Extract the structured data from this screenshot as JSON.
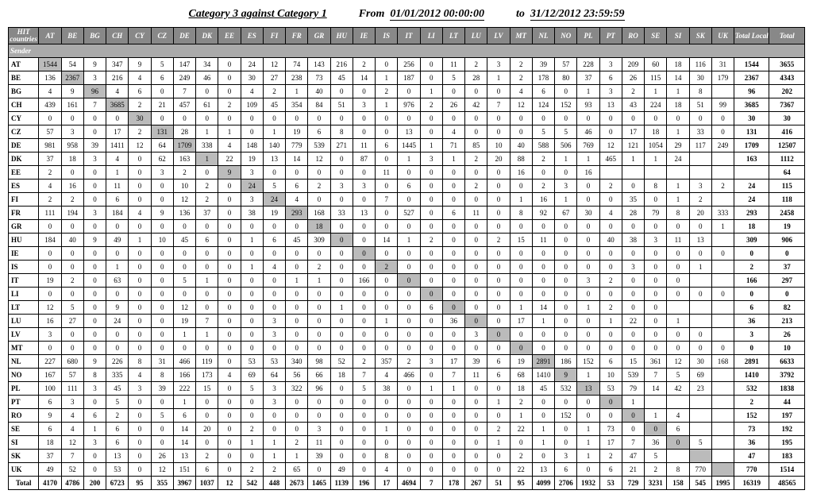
{
  "header": {
    "title": "Category 3 against Category 1",
    "from_lbl": "From",
    "from": "01/01/2012 00:00:00",
    "to_lbl": "to",
    "to": "31/12/2012 23:59:59"
  },
  "corner": "HIT countries",
  "sender": "Sender",
  "total_lbl": "Total",
  "total_local_lbl": "Total Local",
  "countries": [
    "AT",
    "BE",
    "BG",
    "CH",
    "CY",
    "CZ",
    "DE",
    "DK",
    "EE",
    "ES",
    "FI",
    "FR",
    "GR",
    "HU",
    "IE",
    "IS",
    "IT",
    "LI",
    "LT",
    "LU",
    "LV",
    "MT",
    "NL",
    "NO",
    "PL",
    "PT",
    "RO",
    "SE",
    "SI",
    "SK",
    "UK"
  ],
  "rows": [
    {
      "c": "AT",
      "v": [
        1544,
        54,
        9,
        347,
        9,
        5,
        147,
        34,
        0,
        24,
        12,
        74,
        143,
        216,
        2,
        0,
        256,
        0,
        11,
        2,
        3,
        2,
        39,
        57,
        228,
        3,
        209,
        60,
        18,
        116,
        31
      ],
      "tl": 1544,
      "t": 3655
    },
    {
      "c": "BE",
      "v": [
        136,
        2367,
        3,
        216,
        4,
        6,
        249,
        46,
        0,
        30,
        27,
        238,
        73,
        45,
        14,
        1,
        187,
        0,
        5,
        28,
        1,
        2,
        178,
        80,
        37,
        6,
        26,
        115,
        14,
        30,
        179
      ],
      "tl": 2367,
      "t": 4343
    },
    {
      "c": "BG",
      "v": [
        4,
        9,
        96,
        4,
        6,
        0,
        7,
        0,
        0,
        4,
        2,
        1,
        40,
        0,
        0,
        2,
        0,
        1,
        0,
        0,
        0,
        4,
        6,
        0,
        1,
        3,
        2,
        1,
        1,
        8,
        ""
      ],
      "tl": 96,
      "t": 202
    },
    {
      "c": "CH",
      "v": [
        439,
        161,
        7,
        3685,
        2,
        21,
        457,
        61,
        2,
        109,
        45,
        354,
        84,
        51,
        3,
        1,
        976,
        2,
        26,
        42,
        7,
        12,
        124,
        152,
        93,
        13,
        43,
        224,
        18,
        51,
        99
      ],
      "tl": 3685,
      "t": 7367
    },
    {
      "c": "CY",
      "v": [
        0,
        0,
        0,
        0,
        30,
        0,
        0,
        0,
        0,
        0,
        0,
        0,
        0,
        0,
        0,
        0,
        0,
        0,
        0,
        0,
        0,
        0,
        0,
        0,
        0,
        0,
        0,
        0,
        0,
        0,
        0
      ],
      "tl": 30,
      "t": 30
    },
    {
      "c": "CZ",
      "v": [
        57,
        3,
        0,
        17,
        2,
        131,
        28,
        1,
        1,
        0,
        1,
        19,
        6,
        8,
        0,
        0,
        13,
        0,
        4,
        0,
        0,
        0,
        5,
        5,
        46,
        0,
        17,
        18,
        1,
        33,
        0
      ],
      "tl": 131,
      "t": 416
    },
    {
      "c": "DE",
      "v": [
        981,
        958,
        39,
        1411,
        12,
        64,
        1709,
        338,
        4,
        148,
        140,
        779,
        539,
        271,
        11,
        6,
        1445,
        1,
        71,
        85,
        10,
        40,
        588,
        506,
        769,
        12,
        121,
        1054,
        29,
        117,
        249
      ],
      "tl": 1709,
      "t": 12507
    },
    {
      "c": "DK",
      "v": [
        37,
        18,
        3,
        4,
        0,
        62,
        163,
        1,
        22,
        19,
        13,
        14,
        12,
        0,
        87,
        0,
        1,
        3,
        1,
        2,
        20,
        88,
        2,
        1,
        1,
        465,
        1,
        1,
        24,
        "",
        ""
      ],
      "tl": 163,
      "t": 1112
    },
    {
      "c": "EE",
      "v": [
        2,
        0,
        0,
        1,
        0,
        3,
        2,
        0,
        9,
        3,
        0,
        0,
        0,
        0,
        0,
        11,
        0,
        0,
        0,
        0,
        0,
        16,
        0,
        0,
        16,
        "",
        "",
        "",
        "",
        "",
        ""
      ],
      "tl": "",
      "t": 64
    },
    {
      "c": "ES",
      "v": [
        4,
        16,
        0,
        11,
        0,
        0,
        10,
        2,
        0,
        24,
        5,
        6,
        2,
        3,
        3,
        0,
        6,
        0,
        0,
        2,
        0,
        0,
        2,
        3,
        0,
        2,
        0,
        8,
        1,
        3,
        2
      ],
      "tl": 24,
      "t": 115
    },
    {
      "c": "FI",
      "v": [
        2,
        2,
        0,
        6,
        0,
        0,
        12,
        2,
        0,
        3,
        24,
        4,
        0,
        0,
        0,
        7,
        0,
        0,
        0,
        0,
        0,
        1,
        16,
        1,
        0,
        0,
        35,
        0,
        1,
        2,
        ""
      ],
      "tl": 24,
      "t": 118
    },
    {
      "c": "FR",
      "v": [
        111,
        194,
        3,
        184,
        4,
        9,
        136,
        37,
        0,
        38,
        19,
        293,
        168,
        33,
        13,
        0,
        527,
        0,
        6,
        11,
        0,
        8,
        92,
        67,
        30,
        4,
        28,
        79,
        8,
        20,
        333
      ],
      "tl": 293,
      "t": 2458
    },
    {
      "c": "GR",
      "v": [
        0,
        0,
        0,
        0,
        0,
        0,
        0,
        0,
        0,
        0,
        0,
        0,
        18,
        0,
        0,
        0,
        0,
        0,
        0,
        0,
        0,
        0,
        0,
        0,
        0,
        0,
        0,
        0,
        0,
        0,
        1
      ],
      "tl": 18,
      "t": 19
    },
    {
      "c": "HU",
      "v": [
        184,
        40,
        9,
        49,
        1,
        10,
        45,
        6,
        0,
        1,
        6,
        45,
        309,
        0,
        0,
        14,
        1,
        2,
        0,
        0,
        2,
        15,
        11,
        0,
        0,
        40,
        38,
        3,
        11,
        13,
        ""
      ],
      "tl": 309,
      "t": 906
    },
    {
      "c": "IE",
      "v": [
        0,
        0,
        0,
        0,
        0,
        0,
        0,
        0,
        0,
        0,
        0,
        0,
        0,
        0,
        0,
        0,
        0,
        0,
        0,
        0,
        0,
        0,
        0,
        0,
        0,
        0,
        0,
        0,
        0,
        0,
        0
      ],
      "tl": 0,
      "t": 0
    },
    {
      "c": "IS",
      "v": [
        0,
        0,
        0,
        1,
        0,
        0,
        0,
        0,
        0,
        1,
        4,
        0,
        2,
        0,
        0,
        2,
        0,
        0,
        0,
        0,
        0,
        0,
        0,
        0,
        0,
        0,
        3,
        0,
        0,
        1,
        ""
      ],
      "tl": 2,
      "t": 37
    },
    {
      "c": "IT",
      "v": [
        19,
        2,
        0,
        63,
        0,
        0,
        5,
        1,
        0,
        0,
        0,
        1,
        1,
        0,
        166,
        0,
        0,
        0,
        0,
        0,
        0,
        0,
        0,
        0,
        3,
        2,
        0,
        0,
        0,
        "",
        ""
      ],
      "tl": 166,
      "t": 297
    },
    {
      "c": "LI",
      "v": [
        0,
        0,
        0,
        0,
        0,
        0,
        0,
        0,
        0,
        0,
        0,
        0,
        0,
        0,
        0,
        0,
        0,
        0,
        0,
        0,
        0,
        0,
        0,
        0,
        0,
        0,
        0,
        0,
        0,
        0,
        0
      ],
      "tl": 0,
      "t": 0
    },
    {
      "c": "LT",
      "v": [
        12,
        5,
        0,
        9,
        0,
        0,
        12,
        0,
        0,
        0,
        0,
        0,
        0,
        1,
        0,
        0,
        0,
        6,
        0,
        0,
        0,
        1,
        14,
        0,
        1,
        2,
        0,
        0,
        "",
        "",
        ""
      ],
      "tl": 6,
      "t": 82
    },
    {
      "c": "LU",
      "v": [
        16,
        27,
        0,
        24,
        0,
        0,
        19,
        7,
        0,
        0,
        3,
        0,
        0,
        0,
        0,
        1,
        0,
        0,
        36,
        0,
        0,
        17,
        1,
        0,
        0,
        1,
        22,
        0,
        1,
        "",
        ""
      ],
      "tl": 36,
      "t": 213
    },
    {
      "c": "LV",
      "v": [
        3,
        0,
        0,
        0,
        0,
        0,
        1,
        1,
        0,
        0,
        3,
        0,
        0,
        0,
        0,
        0,
        0,
        0,
        0,
        3,
        0,
        0,
        0,
        0,
        0,
        0,
        0,
        0,
        0,
        0,
        ""
      ],
      "tl": 3,
      "t": 26
    },
    {
      "c": "MT",
      "v": [
        0,
        0,
        0,
        0,
        0,
        0,
        0,
        0,
        0,
        0,
        0,
        0,
        0,
        0,
        0,
        0,
        0,
        0,
        0,
        0,
        0,
        0,
        0,
        0,
        0,
        0,
        0,
        0,
        0,
        0,
        0
      ],
      "tl": 0,
      "t": 10
    },
    {
      "c": "NL",
      "v": [
        227,
        680,
        9,
        226,
        8,
        31,
        466,
        119,
        0,
        53,
        53,
        340,
        98,
        52,
        2,
        357,
        2,
        3,
        17,
        39,
        6,
        19,
        2891,
        186,
        152,
        6,
        15,
        361,
        12,
        30,
        168
      ],
      "tl": 2891,
      "t": 6633
    },
    {
      "c": "NO",
      "v": [
        167,
        57,
        8,
        335,
        4,
        8,
        166,
        173,
        4,
        69,
        64,
        56,
        66,
        18,
        7,
        4,
        466,
        0,
        7,
        11,
        6,
        68,
        1410,
        9,
        1,
        10,
        539,
        7,
        5,
        69,
        ""
      ],
      "tl": 1410,
      "t": 3792
    },
    {
      "c": "PL",
      "v": [
        100,
        111,
        3,
        45,
        3,
        39,
        222,
        15,
        0,
        5,
        3,
        322,
        96,
        0,
        5,
        38,
        0,
        1,
        1,
        0,
        0,
        18,
        45,
        532,
        13,
        53,
        79,
        14,
        42,
        23,
        ""
      ],
      "tl": 532,
      "t": 1838
    },
    {
      "c": "PT",
      "v": [
        6,
        3,
        0,
        5,
        0,
        0,
        1,
        0,
        0,
        0,
        3,
        0,
        0,
        0,
        0,
        0,
        0,
        0,
        0,
        0,
        1,
        2,
        0,
        0,
        0,
        0,
        1,
        "",
        "",
        "",
        ""
      ],
      "tl": 2,
      "t": 44
    },
    {
      "c": "RO",
      "v": [
        9,
        4,
        6,
        2,
        0,
        5,
        6,
        0,
        0,
        0,
        0,
        0,
        0,
        0,
        0,
        0,
        0,
        0,
        0,
        0,
        0,
        1,
        0,
        152,
        0,
        0,
        0,
        1,
        4,
        "",
        ""
      ],
      "tl": 152,
      "t": 197
    },
    {
      "c": "SE",
      "v": [
        6,
        4,
        1,
        6,
        0,
        0,
        14,
        20,
        0,
        2,
        0,
        0,
        3,
        0,
        0,
        1,
        0,
        0,
        0,
        0,
        2,
        22,
        1,
        0,
        1,
        73,
        0,
        0,
        6,
        "",
        ""
      ],
      "tl": 73,
      "t": 192
    },
    {
      "c": "SI",
      "v": [
        18,
        12,
        3,
        6,
        0,
        0,
        14,
        0,
        0,
        1,
        1,
        2,
        11,
        0,
        0,
        0,
        0,
        0,
        0,
        0,
        1,
        0,
        1,
        0,
        1,
        17,
        7,
        36,
        0,
        5,
        ""
      ],
      "tl": 36,
      "t": 195
    },
    {
      "c": "SK",
      "v": [
        37,
        7,
        0,
        13,
        0,
        26,
        13,
        2,
        0,
        0,
        1,
        1,
        39,
        0,
        0,
        8,
        0,
        0,
        0,
        0,
        0,
        2,
        0,
        3,
        1,
        2,
        47,
        5,
        "",
        "",
        ""
      ],
      "tl": 47,
      "t": 183
    },
    {
      "c": "UK",
      "v": [
        49,
        52,
        0,
        53,
        0,
        12,
        151,
        6,
        0,
        2,
        2,
        65,
        0,
        49,
        0,
        4,
        0,
        0,
        0,
        0,
        0,
        22,
        13,
        6,
        0,
        6,
        21,
        2,
        8,
        770,
        ""
      ],
      "tl": 770,
      "t": 1514
    }
  ],
  "totals": {
    "v": [
      4170,
      4786,
      200,
      6723,
      95,
      355,
      3967,
      1037,
      12,
      542,
      448,
      2673,
      1465,
      1139,
      196,
      17,
      4694,
      7,
      178,
      267,
      51,
      95,
      4099,
      2706,
      1932,
      53,
      729,
      3231,
      158,
      545,
      1995
    ],
    "tl": 16319,
    "t": 48565
  },
  "style": {
    "hdr_bg": "#888888",
    "diag_bg": "#bbbbbb",
    "border": "#000000",
    "font": "Times New Roman"
  }
}
